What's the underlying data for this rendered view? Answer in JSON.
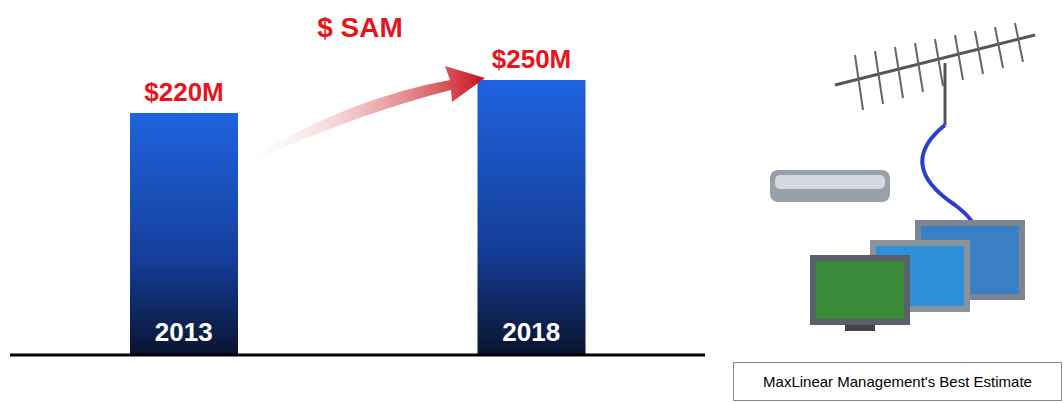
{
  "chart_data": {
    "type": "bar",
    "title": "$ SAM",
    "categories": [
      "2013",
      "2018"
    ],
    "values": [
      220,
      250
    ],
    "value_labels": [
      "$220M",
      "$250M"
    ],
    "data_labels": true,
    "ylim": [
      0,
      250
    ],
    "tick_labels": "x",
    "color": "#1f63e0",
    "annotations": [
      "MaxLinear Management's Best Estimate"
    ]
  }
}
